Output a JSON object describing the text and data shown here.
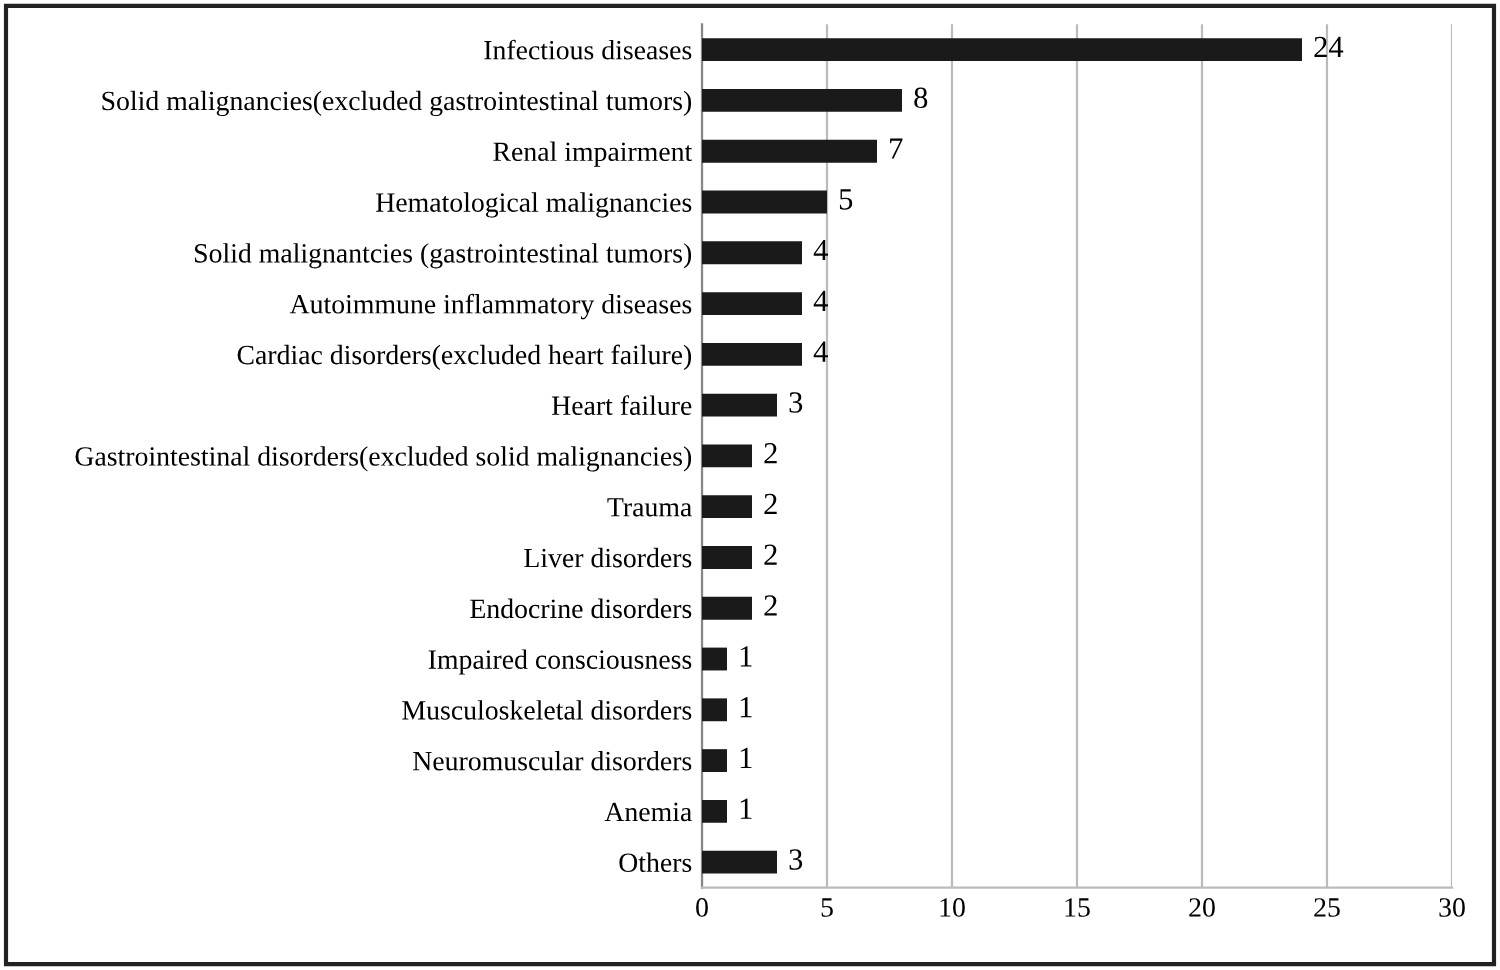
{
  "chart_data": {
    "type": "bar",
    "orientation": "horizontal",
    "categories": [
      "Infectious diseases",
      "Solid malignancies(excluded gastrointestinal tumors)",
      "Renal impairment",
      "Hematological malignancies",
      "Solid malignantcies (gastrointestinal tumors)",
      "Autoimmune inflammatory diseases",
      "Cardiac disorders(excluded heart failure)",
      "Heart failure",
      "Gastrointestinal disorders(excluded solid malignancies)",
      "Trauma",
      "Liver disorders",
      "Endocrine disorders",
      "Impaired consciousness",
      "Musculoskeletal disorders",
      "Neuromuscular disorders",
      "Anemia",
      "Others"
    ],
    "values": [
      24,
      8,
      7,
      5,
      4,
      4,
      4,
      3,
      2,
      2,
      2,
      2,
      1,
      1,
      1,
      1,
      3
    ],
    "color": "#1a1a1a",
    "xlim": [
      0,
      30
    ],
    "xticks": [
      0,
      5,
      10,
      15,
      20,
      25,
      30
    ],
    "grid": "x",
    "data_labels": true
  }
}
